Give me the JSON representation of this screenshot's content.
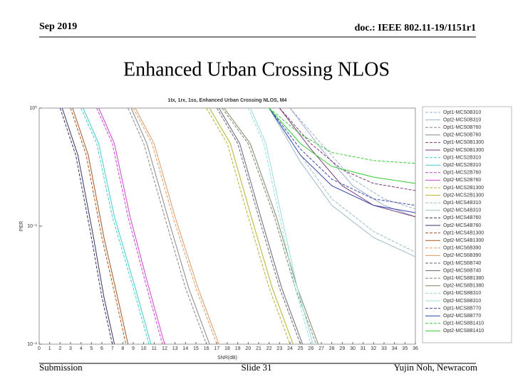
{
  "header": {
    "date": "Sep 2019",
    "doc": "doc.: IEEE 802.11-19/1151r1"
  },
  "title": "Enhanced Urban Crossing NLOS",
  "footer": {
    "left": "Submission",
    "center": "Slide 31",
    "right": "Yujin Noh, Newracom"
  },
  "chart_data": {
    "type": "line",
    "title": "1tx, 1rx, 1ss, Enhanced Urban Crossing NLOS, M4",
    "xlabel": "SNR(dB)",
    "ylabel": "PER",
    "ylog": true,
    "grid": false,
    "xlim": [
      0,
      36
    ],
    "ylim": [
      0.01,
      1
    ],
    "xticks": [
      0,
      1,
      2,
      3,
      4,
      5,
      6,
      7,
      8,
      9,
      10,
      11,
      12,
      13,
      14,
      15,
      16,
      17,
      18,
      19,
      20,
      21,
      22,
      23,
      24,
      25,
      26,
      27,
      28,
      29,
      30,
      31,
      32,
      33,
      34,
      35,
      36
    ],
    "yticks": [
      {
        "value": 1,
        "label": "10⁰"
      },
      {
        "value": 0.1,
        "label": "10⁻¹"
      },
      {
        "value": 0.01,
        "label": "10⁻²"
      }
    ],
    "legend": "right",
    "series": [
      {
        "name": "Opt1-MCS0B310",
        "color": "#9ab0c8",
        "dashed": true,
        "x": [
          24,
          27,
          30,
          33,
          36
        ],
        "values": [
          1,
          0.5,
          0.25,
          0.17,
          0.14
        ]
      },
      {
        "name": "Opt2-MCS0B310",
        "color": "#9ab0c8",
        "dashed": false,
        "x": [
          24,
          27,
          30,
          33,
          36
        ],
        "values": [
          1,
          0.45,
          0.22,
          0.15,
          0.12
        ]
      },
      {
        "name": "Opt1-MCS0B760",
        "color": "#888888",
        "dashed": true,
        "x": [
          8.5,
          10,
          12,
          14,
          16
        ],
        "values": [
          1,
          0.5,
          0.12,
          0.03,
          0.01
        ]
      },
      {
        "name": "Opt2-MCS0B760",
        "color": "#888888",
        "dashed": false,
        "x": [
          8.8,
          10.3,
          12.3,
          14.3,
          16.3
        ],
        "values": [
          1,
          0.5,
          0.12,
          0.03,
          0.01
        ]
      },
      {
        "name": "Opt1-MCS0B1300",
        "color": "#7a3a7a",
        "dashed": true,
        "x": [
          23,
          26,
          29,
          32,
          36
        ],
        "values": [
          1,
          0.5,
          0.3,
          0.23,
          0.2
        ]
      },
      {
        "name": "Opt2-MCS0B1300",
        "color": "#7a3a7a",
        "dashed": false,
        "x": [
          23,
          26,
          29,
          32,
          36
        ],
        "values": [
          1,
          0.45,
          0.22,
          0.15,
          0.12
        ]
      },
      {
        "name": "Opt1-MCS2B310",
        "color": "#44cccc",
        "dashed": true,
        "x": [
          4,
          5.5,
          7,
          9,
          10.5
        ],
        "values": [
          1,
          0.5,
          0.12,
          0.03,
          0.01
        ]
      },
      {
        "name": "Opt2-MCS2B310",
        "color": "#44cccc",
        "dashed": false,
        "x": [
          4.2,
          5.7,
          7.2,
          9.2,
          10.7
        ],
        "values": [
          1,
          0.5,
          0.12,
          0.03,
          0.01
        ]
      },
      {
        "name": "Opt1-MCS2B760",
        "color": "#cc44cc",
        "dashed": true,
        "x": [
          5.5,
          7,
          8.5,
          10.3,
          11.8
        ],
        "values": [
          1,
          0.5,
          0.12,
          0.03,
          0.01
        ]
      },
      {
        "name": "Opt2-MCS2B760",
        "color": "#cc44cc",
        "dashed": false,
        "x": [
          5.7,
          7.2,
          8.7,
          10.5,
          12
        ],
        "values": [
          1,
          0.5,
          0.12,
          0.03,
          0.01
        ]
      },
      {
        "name": "Opt1-MCS2B1300",
        "color": "#b8b030",
        "dashed": true,
        "x": [
          16,
          18,
          20,
          22,
          24
        ],
        "values": [
          1,
          0.5,
          0.12,
          0.03,
          0.01
        ]
      },
      {
        "name": "Opt2-MCS2B1300",
        "color": "#b8b030",
        "dashed": false,
        "x": [
          16.3,
          18.3,
          20.3,
          22.3,
          24.3
        ],
        "values": [
          1,
          0.5,
          0.12,
          0.03,
          0.01
        ]
      },
      {
        "name": "Opt1-MCS4B310",
        "color": "#99bbcc",
        "dashed": true,
        "x": [
          22,
          25,
          28,
          32,
          36
        ],
        "values": [
          1,
          0.4,
          0.17,
          0.09,
          0.06
        ]
      },
      {
        "name": "Opt2-MCS4B310",
        "color": "#99bbcc",
        "dashed": false,
        "x": [
          22,
          25,
          28,
          32,
          36
        ],
        "values": [
          1,
          0.35,
          0.15,
          0.08,
          0.055
        ]
      },
      {
        "name": "Opt1-MCS4B760",
        "color": "#333366",
        "dashed": true,
        "x": [
          2,
          3.5,
          5,
          6,
          7
        ],
        "values": [
          1,
          0.4,
          0.08,
          0.025,
          0.01
        ]
      },
      {
        "name": "Opt2-MCS4B760",
        "color": "#333366",
        "dashed": false,
        "x": [
          2.2,
          3.7,
          5.2,
          6.2,
          7.2
        ],
        "values": [
          1,
          0.4,
          0.08,
          0.025,
          0.01
        ]
      },
      {
        "name": "Opt1-MCS4B1300",
        "color": "#a55522",
        "dashed": true,
        "x": [
          3,
          4.5,
          6,
          7.3,
          8.3
        ],
        "values": [
          1,
          0.4,
          0.08,
          0.025,
          0.01
        ]
      },
      {
        "name": "Opt2-MCS4B1300",
        "color": "#a55522",
        "dashed": false,
        "x": [
          3.2,
          4.7,
          6.2,
          7.5,
          8.5
        ],
        "values": [
          1,
          0.4,
          0.08,
          0.025,
          0.01
        ]
      },
      {
        "name": "Opt1-MCS6B390",
        "color": "#dd9966",
        "dashed": true,
        "x": [
          9,
          10.8,
          12.8,
          15,
          17
        ],
        "values": [
          1,
          0.5,
          0.12,
          0.03,
          0.01
        ]
      },
      {
        "name": "Opt2-MCS6B390",
        "color": "#dd9966",
        "dashed": false,
        "x": [
          9.2,
          11,
          13,
          15.2,
          17.2
        ],
        "values": [
          1,
          0.5,
          0.12,
          0.03,
          0.01
        ]
      },
      {
        "name": "Opt1-MCS6B740",
        "color": "#666677",
        "dashed": true,
        "x": [
          17,
          19,
          21,
          23,
          25
        ],
        "values": [
          1,
          0.5,
          0.12,
          0.03,
          0.01
        ]
      },
      {
        "name": "Opt2-MCS6B740",
        "color": "#666677",
        "dashed": false,
        "x": [
          17.2,
          19.2,
          21.2,
          23.2,
          25.2
        ],
        "values": [
          1,
          0.5,
          0.12,
          0.03,
          0.01
        ]
      },
      {
        "name": "Opt1-MCS8B1380",
        "color": "#778866",
        "dashed": true,
        "x": [
          17.5,
          20,
          22.5,
          24.5,
          26.5
        ],
        "values": [
          1,
          0.5,
          0.12,
          0.03,
          0.01
        ]
      },
      {
        "name": "Opt2-MCS8B1380",
        "color": "#778866",
        "dashed": false,
        "x": [
          17.7,
          20.2,
          22.7,
          24.7,
          26.7
        ],
        "values": [
          1,
          0.5,
          0.12,
          0.03,
          0.01
        ]
      },
      {
        "name": "Opt1-MCS8B310",
        "color": "#99dddd",
        "dashed": true,
        "x": [
          20,
          21.5,
          23,
          24.5,
          26
        ],
        "values": [
          1,
          0.5,
          0.12,
          0.03,
          0.01
        ]
      },
      {
        "name": "Opt2-MCS8B310",
        "color": "#99dddd",
        "dashed": false,
        "x": [
          20.2,
          21.7,
          23.2,
          24.7,
          26.2
        ],
        "values": [
          1,
          0.5,
          0.12,
          0.03,
          0.01
        ]
      },
      {
        "name": "Opt1-MCS8B770",
        "color": "#3344aa",
        "dashed": true,
        "x": [
          22,
          25,
          28,
          32,
          36
        ],
        "values": [
          1,
          0.45,
          0.25,
          0.17,
          0.15
        ]
      },
      {
        "name": "Opt2-MCS8B770",
        "color": "#3344aa",
        "dashed": false,
        "x": [
          22,
          25,
          28,
          32,
          36
        ],
        "values": [
          1,
          0.4,
          0.22,
          0.15,
          0.13
        ]
      },
      {
        "name": "Opt1-MCS8B1410",
        "color": "#33cc33",
        "dashed": true,
        "x": [
          22,
          25,
          28,
          32,
          36
        ],
        "values": [
          1,
          0.6,
          0.42,
          0.36,
          0.34
        ]
      },
      {
        "name": "Opt2-MCS8B1410",
        "color": "#33cc33",
        "dashed": false,
        "x": [
          22,
          25,
          28,
          32,
          36
        ],
        "values": [
          1,
          0.5,
          0.32,
          0.26,
          0.23
        ]
      }
    ]
  }
}
